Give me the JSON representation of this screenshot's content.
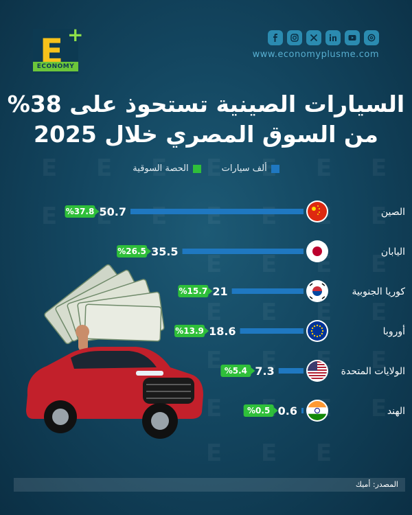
{
  "brand": {
    "logo_letter": "E",
    "logo_plus": "+",
    "logo_band": "ECONOMY",
    "website": "www.economyplusme.com"
  },
  "social_icons": [
    "facebook-icon",
    "instagram-icon",
    "x-icon",
    "linkedin-icon",
    "youtube-icon",
    "threads-icon"
  ],
  "header": {
    "title_line1": "السيارات الصينية تستحوذ على 38%",
    "title_line2": "من السوق المصري خلال 2025"
  },
  "legend": {
    "units": "ألف سيارات",
    "share": "الحصة السوقية"
  },
  "colors": {
    "bar": "#1f78c1",
    "share": "#2fbf3a",
    "background": "#134660"
  },
  "chart_data": {
    "type": "bar",
    "orientation": "horizontal",
    "categories": [
      "الصين",
      "اليابان",
      "كوريا الجنوبية",
      "أوروبا",
      "الولايات المتحدة",
      "الهند"
    ],
    "series": [
      {
        "name": "ألف سيارات",
        "values": [
          50.7,
          35.5,
          21,
          18.6,
          7.3,
          0.6
        ],
        "labels": [
          "50.7",
          "35.5",
          "21",
          "18.6",
          "7.3",
          "0.6"
        ]
      },
      {
        "name": "الحصة السوقية",
        "values": [
          37.8,
          26.5,
          15.7,
          13.9,
          5.4,
          0.5
        ],
        "labels": [
          "%37.8",
          "%26.5",
          "%15.7",
          "%13.9",
          "%5.4",
          "%0.5"
        ]
      }
    ],
    "flags": [
      "china-flag-icon",
      "japan-flag-icon",
      "south-korea-flag-icon",
      "eu-flag-icon",
      "usa-flag-icon",
      "india-flag-icon"
    ],
    "xlim": [
      0,
      50.7
    ],
    "grid": false,
    "legend_position": "top-center"
  },
  "footer": {
    "source": "المصدر: أميك"
  }
}
